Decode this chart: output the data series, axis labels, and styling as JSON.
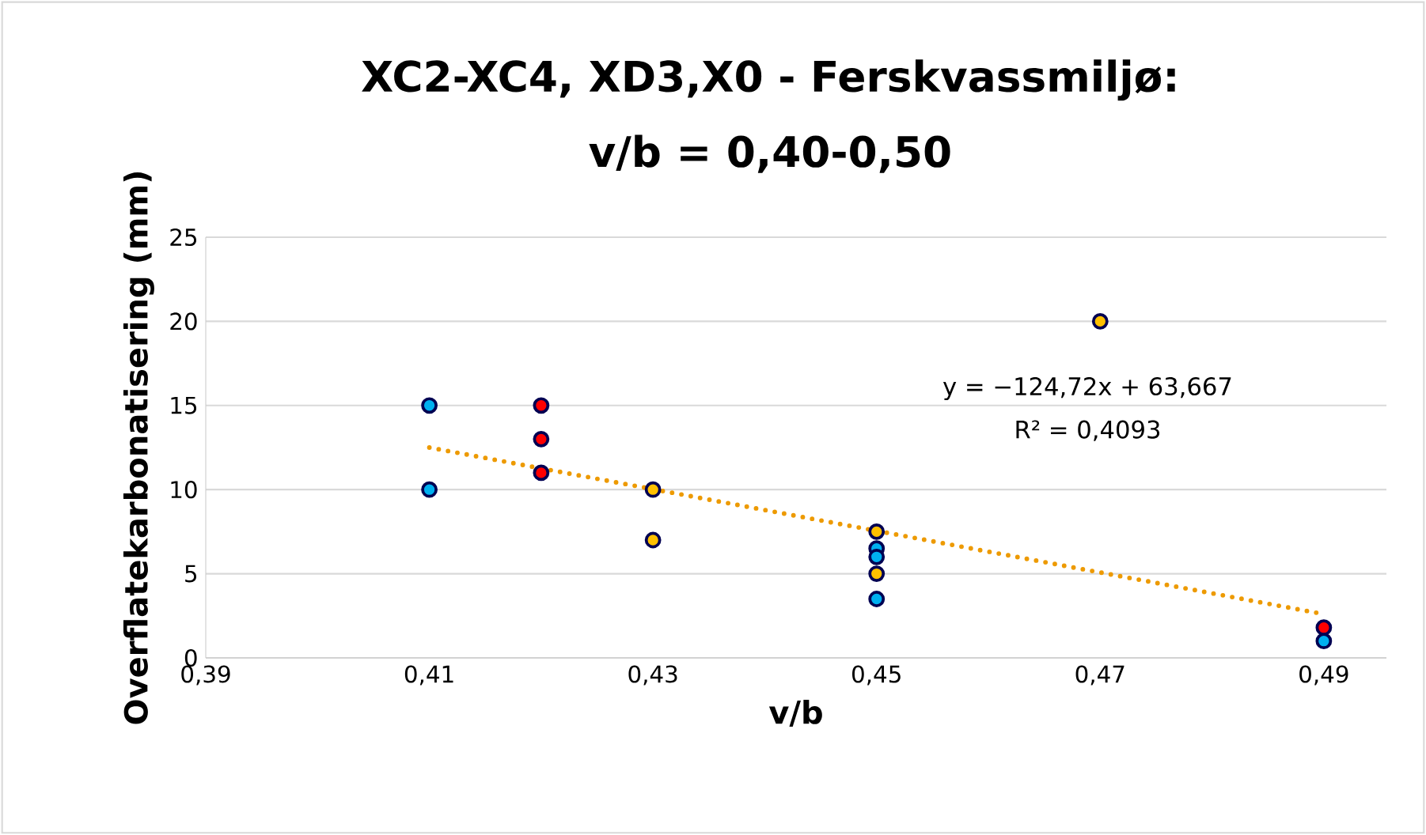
{
  "chart_data": {
    "type": "scatter",
    "title": "XC2-XC4, XD3,X0 - Ferskvassmiljø:",
    "subtitle": "v/b = 0,40-0,50",
    "xlabel": "v/b",
    "ylabel": "Overflatekarbonatisering (mm)",
    "annotations": [
      "y = −124,72x + 63,667",
      "R² = 0,4093"
    ],
    "xlim": [
      0.39,
      0.4956
    ],
    "ylim": [
      0,
      25
    ],
    "xticks": [
      {
        "value": 0.39,
        "label": "0,39"
      },
      {
        "value": 0.41,
        "label": "0,41"
      },
      {
        "value": 0.43,
        "label": "0,43"
      },
      {
        "value": 0.45,
        "label": "0,45"
      },
      {
        "value": 0.47,
        "label": "0,47"
      },
      {
        "value": 0.49,
        "label": "0,49"
      }
    ],
    "yticks": [
      0,
      5,
      10,
      15,
      20,
      25
    ],
    "grid": "y",
    "series": [
      {
        "marker": "circle",
        "color": "#00b0f0",
        "x": [
          0.41,
          0.41,
          0.45,
          0.45,
          0.45,
          0.49
        ],
        "values": [
          15,
          10,
          6.5,
          6,
          3.5,
          1
        ]
      },
      {
        "marker": "circle",
        "color": "#ff0000",
        "x": [
          0.42,
          0.42,
          0.42,
          0.49
        ],
        "values": [
          15,
          13,
          11,
          1.8
        ]
      },
      {
        "marker": "circle",
        "color": "#ffc000",
        "x": [
          0.43,
          0.43,
          0.45,
          0.45,
          0.47
        ],
        "values": [
          10,
          7,
          7.5,
          5,
          20
        ]
      },
      {
        "type": "line",
        "line_style": "dotted",
        "marker": "none",
        "color": "#ed9a00",
        "x": [
          0.41,
          0.49
        ],
        "values": [
          12.5,
          2.6
        ]
      }
    ]
  }
}
